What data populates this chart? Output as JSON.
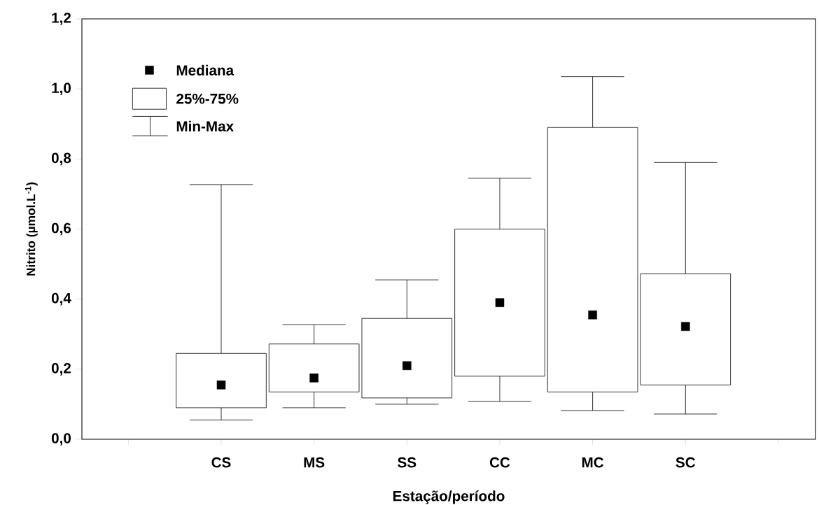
{
  "chart_data": {
    "type": "box",
    "xlabel": "Estação/período",
    "ylabel": "Nitrito (µmol.L$^{-1}$)",
    "categories": [
      "CS",
      "MS",
      "SS",
      "CC",
      "MC",
      "SC"
    ],
    "boxes": [
      {
        "low": 0.055,
        "q1": 0.09,
        "median": 0.155,
        "q3": 0.245,
        "high": 0.727
      },
      {
        "low": 0.09,
        "q1": 0.135,
        "median": 0.175,
        "q3": 0.272,
        "high": 0.327
      },
      {
        "low": 0.1,
        "q1": 0.118,
        "median": 0.21,
        "q3": 0.345,
        "high": 0.455
      },
      {
        "low": 0.108,
        "q1": 0.18,
        "median": 0.39,
        "q3": 0.6,
        "high": 0.745
      },
      {
        "low": 0.082,
        "q1": 0.135,
        "median": 0.355,
        "q3": 0.89,
        "high": 1.035
      },
      {
        "low": 0.072,
        "q1": 0.155,
        "median": 0.322,
        "q3": 0.472,
        "high": 0.79
      }
    ],
    "ylim": [
      0,
      1.2
    ],
    "yticks": [
      {
        "value": 0,
        "label": "0,0"
      },
      {
        "value": 0.2,
        "label": "0,2"
      },
      {
        "value": 0.4,
        "label": "0,4"
      },
      {
        "value": 0.6,
        "label": "0,6"
      },
      {
        "value": 0.8,
        "label": "0,8"
      },
      {
        "value": 1.0,
        "label": "1,0"
      },
      {
        "value": 1.2,
        "label": "1,2"
      }
    ],
    "marker": "square",
    "annotations": [
      "Mediana",
      "25%-75%",
      "Min-Max"
    ]
  }
}
